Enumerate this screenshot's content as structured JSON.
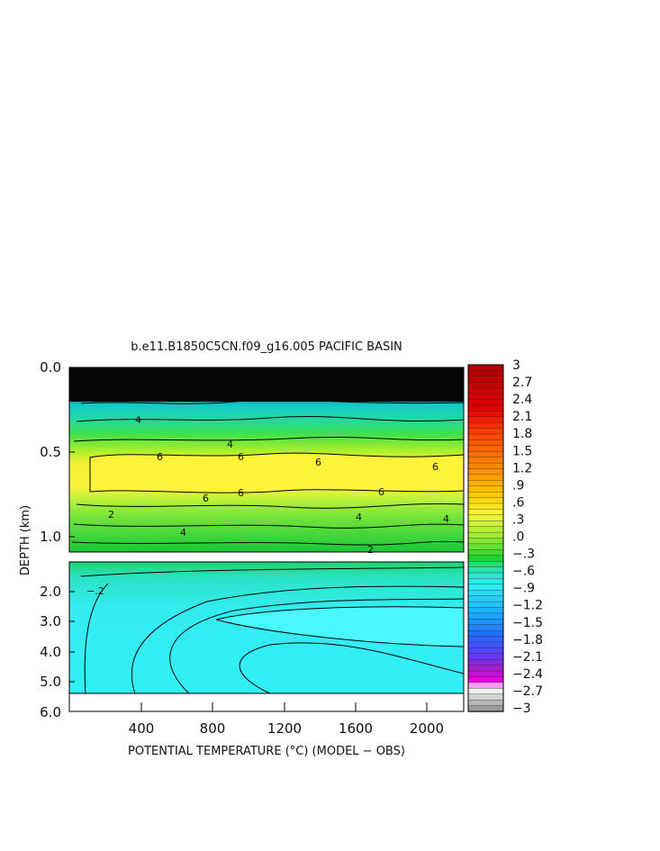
{
  "chart_data": {
    "type": "heatmap",
    "title": "b.e11.B1850C5CN.f09_g16.005 PACIFIC BASIN",
    "xlabel": "POTENTIAL TEMPERATURE (°C) (MODEL − OBS)",
    "ylabel": "DEPTH (km)",
    "x_ticks": [
      "400",
      "800",
      "1200",
      "1600",
      "2000"
    ],
    "y_ticks_upper": [
      "0.0",
      "0.5",
      "1.0"
    ],
    "y_ticks_lower": [
      "2.0",
      "3.0",
      "4.0",
      "5.0",
      "6.0"
    ],
    "xlim": [
      0,
      2200
    ],
    "ylim_upper": [
      0,
      1.1
    ],
    "ylim_lower": [
      1.1,
      6.0
    ],
    "colorbar_labels": [
      "3",
      "2.7",
      "2.4",
      "2.1",
      "1.8",
      "1.5",
      "1.2",
      ".9",
      ".6",
      ".3",
      ".0",
      "−.3",
      "−.6",
      "−.9",
      "−1.2",
      "−1.5",
      "−1.8",
      "−2.1",
      "−2.4",
      "−2.7",
      "−3"
    ],
    "colorbar_range": [
      -3,
      3
    ],
    "contour_labels": [
      "4",
      "6",
      "4",
      "6",
      "6",
      "6",
      "6",
      "6",
      "6",
      "4",
      "4",
      "2",
      "4",
      "2",
      "−.2"
    ],
    "band_colors": {
      "yellow": "#fff23a",
      "green": "#18d43c",
      "cyan": "#33ecf0",
      "light_cyan": "#4af8ff",
      "black": "#000000"
    }
  }
}
